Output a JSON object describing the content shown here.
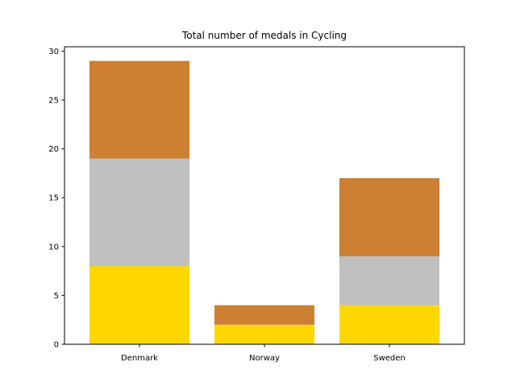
{
  "chart_data": {
    "type": "bar",
    "stacked": true,
    "title": "Total number of medals in Cycling",
    "xlabel": "",
    "ylabel": "",
    "categories": [
      "Denmark",
      "Norway",
      "Sweden"
    ],
    "series": [
      {
        "values": [
          8,
          2,
          4
        ],
        "color": "#FFD700"
      },
      {
        "values": [
          11,
          0,
          5
        ],
        "color": "#C0C0C0"
      },
      {
        "values": [
          10,
          2,
          8
        ],
        "color": "#CD7F32"
      }
    ],
    "ylim": [
      0,
      30.45
    ],
    "yticks": [
      "0",
      "5",
      "10",
      "15",
      "20",
      "25",
      "30"
    ],
    "grid": false,
    "legend": "none"
  }
}
